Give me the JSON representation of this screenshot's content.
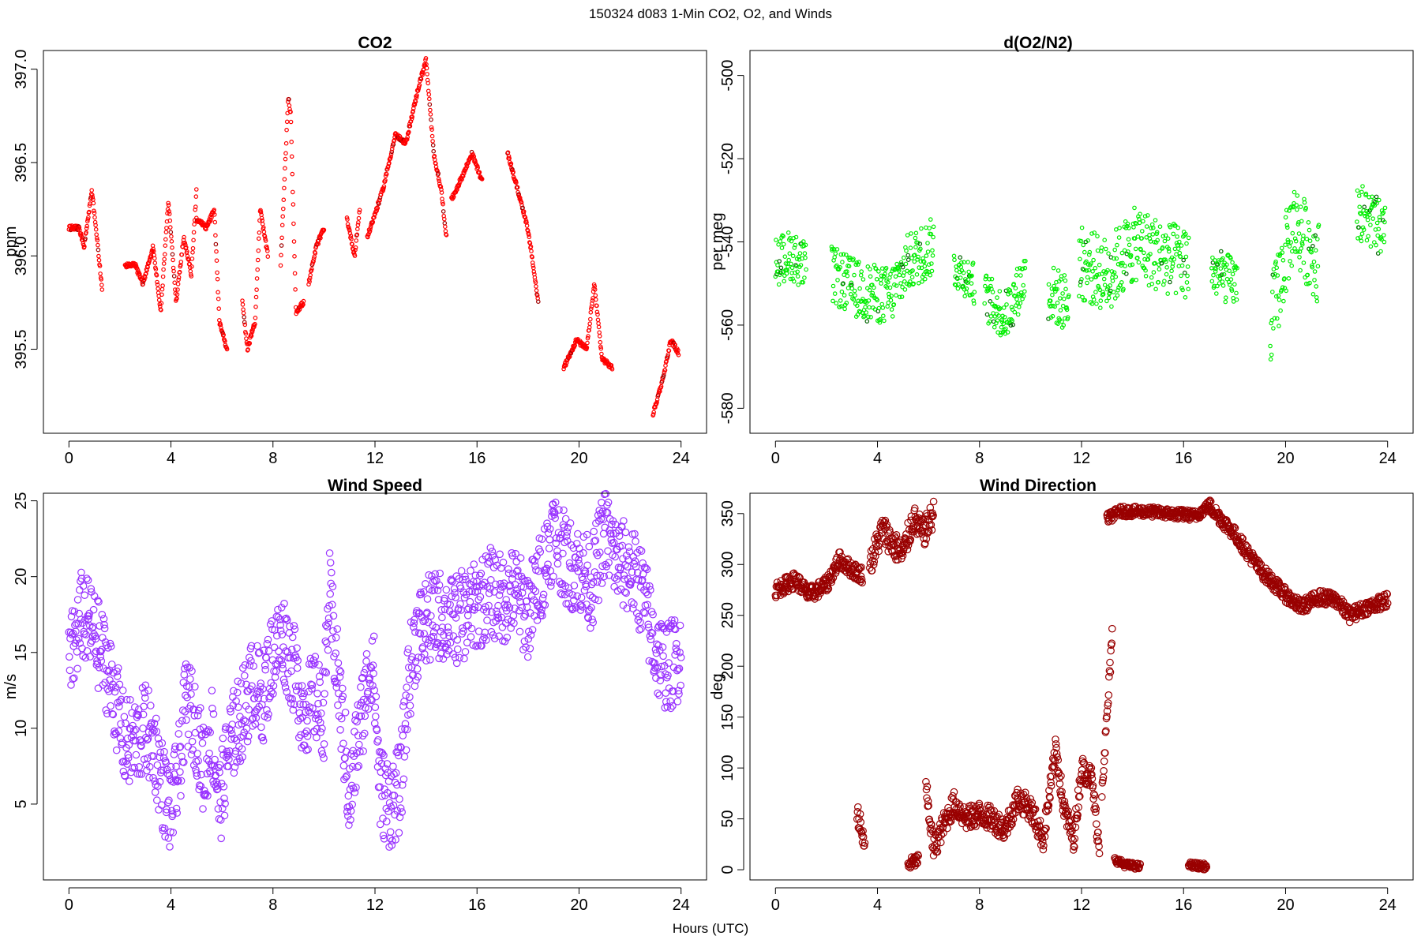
{
  "suptitle": "150324   d083   1-Min CO2, O2, and Winds",
  "xlabel": "Hours (UTC)",
  "chart_data": [
    {
      "id": "co2",
      "type": "scatter",
      "title": "CO2",
      "ylabel": "ppm",
      "color": "#ff0000",
      "dark_color": "#a00000",
      "xlim": [
        -1,
        25
      ],
      "ylim": [
        395.05,
        397.1
      ],
      "xticks": [
        0,
        4,
        8,
        12,
        16,
        20,
        24
      ],
      "yticks": [
        395.5,
        396.0,
        396.5,
        397.0
      ],
      "ytick_labels": [
        "395.5",
        "396.0",
        "396.5",
        "397.0"
      ],
      "segments": [
        {
          "x": [
            0.0,
            0.4,
            0.6,
            0.9,
            1.1,
            1.3
          ],
          "y": [
            396.15,
            396.15,
            396.05,
            396.35,
            396.1,
            395.82
          ]
        },
        {
          "x": [
            2.2,
            2.6,
            2.9,
            3.3,
            3.6,
            3.9,
            4.2,
            4.5,
            4.8,
            5.0
          ],
          "y": [
            395.95,
            395.95,
            395.85,
            396.05,
            395.7,
            396.3,
            395.75,
            396.1,
            395.9,
            396.35
          ]
        },
        {
          "x": [
            5.0,
            5.4,
            5.7,
            5.9,
            6.2
          ],
          "y": [
            396.2,
            396.15,
            396.25,
            395.65,
            395.5
          ]
        },
        {
          "x": [
            6.8,
            7.0,
            7.3,
            7.5,
            7.8
          ],
          "y": [
            395.75,
            395.5,
            395.65,
            396.25,
            396.0
          ]
        },
        {
          "x": [
            8.3,
            8.6,
            8.7,
            8.9,
            9.2
          ],
          "y": [
            395.95,
            396.85,
            396.75,
            395.7,
            395.75
          ]
        },
        {
          "x": [
            9.4,
            9.7,
            10.0
          ],
          "y": [
            395.85,
            396.05,
            396.15
          ]
        },
        {
          "x": [
            10.9,
            11.2,
            11.4
          ],
          "y": [
            396.2,
            396.0,
            396.25
          ]
        },
        {
          "x": [
            11.7,
            12.3,
            12.8,
            13.2,
            13.7,
            14.0,
            14.3,
            14.6,
            14.8
          ],
          "y": [
            396.1,
            396.35,
            396.65,
            396.6,
            396.9,
            397.05,
            396.55,
            396.35,
            396.1
          ]
        },
        {
          "x": [
            15.0,
            15.5,
            15.8,
            16.2
          ],
          "y": [
            396.3,
            396.45,
            396.55,
            396.4
          ]
        },
        {
          "x": [
            17.2,
            17.6,
            17.9,
            18.1,
            18.4
          ],
          "y": [
            396.55,
            396.35,
            396.2,
            396.05,
            395.75
          ]
        },
        {
          "x": [
            19.4,
            19.9,
            20.3,
            20.6,
            20.9,
            21.3
          ],
          "y": [
            395.4,
            395.55,
            395.5,
            395.85,
            395.45,
            395.4
          ]
        },
        {
          "x": [
            22.9,
            23.3,
            23.6,
            23.9
          ],
          "y": [
            395.15,
            395.35,
            395.55,
            395.48
          ]
        }
      ]
    },
    {
      "id": "o2",
      "type": "scatter",
      "title": "d(O2/N2)",
      "ylabel": "per meg",
      "color": "#00ee00",
      "dark_color": "#006400",
      "xlim": [
        -1,
        25
      ],
      "ylim": [
        -586,
        -494
      ],
      "xticks": [
        0,
        4,
        8,
        12,
        16,
        20,
        24
      ],
      "yticks": [
        -580,
        -560,
        -540,
        -520,
        -500
      ],
      "ytick_labels": [
        "-580",
        "-560",
        "-540",
        "-520",
        "-500"
      ],
      "segments": [
        {
          "x": [
            0.0,
            0.6,
            1.2
          ],
          "y": [
            -545,
            -543,
            -546
          ],
          "spread": 6
        },
        {
          "x": [
            2.2,
            3.4,
            4.5,
            5.2,
            6.2
          ],
          "y": [
            -548,
            -552,
            -553,
            -545,
            -541
          ],
          "spread": 7
        },
        {
          "x": [
            7.0,
            7.8
          ],
          "y": [
            -546,
            -550
          ],
          "spread": 5
        },
        {
          "x": [
            8.2,
            9.0,
            9.8
          ],
          "y": [
            -553,
            -558,
            -548
          ],
          "spread": 6
        },
        {
          "x": [
            10.7,
            11.5
          ],
          "y": [
            -552,
            -555
          ],
          "spread": 7
        },
        {
          "x": [
            11.9,
            13.0,
            14.2,
            15.2,
            16.2
          ],
          "y": [
            -545,
            -548,
            -540,
            -544,
            -545
          ],
          "spread": 9
        },
        {
          "x": [
            17.1,
            18.1
          ],
          "y": [
            -547,
            -550
          ],
          "spread": 6
        },
        {
          "x": [
            19.4,
            20.3,
            21.3
          ],
          "y": [
            -560,
            -535,
            -545
          ],
          "spread": 10
        },
        {
          "x": [
            22.8,
            23.9
          ],
          "y": [
            -532,
            -538
          ],
          "spread": 7
        }
      ]
    },
    {
      "id": "wspd",
      "type": "scatter",
      "title": "Wind Speed",
      "ylabel": "m/s",
      "color": "#9933ff",
      "xlim": [
        -1,
        25
      ],
      "ylim": [
        0,
        25.5
      ],
      "xticks": [
        0,
        4,
        8,
        12,
        16,
        20,
        24
      ],
      "yticks": [
        5,
        10,
        15,
        20,
        25
      ],
      "ytick_labels": [
        "5",
        "10",
        "15",
        "20",
        "25"
      ],
      "segments": [
        {
          "x": [
            0,
            0.5,
            0.9,
            1.4,
            1.8,
            2.2,
            2.6,
            3.0,
            3.4,
            3.7,
            4.0,
            4.3,
            4.6,
            5.0,
            5.3,
            5.6,
            5.9,
            6.3,
            6.8,
            7.2,
            7.6,
            8.0,
            8.4,
            8.8,
            9.2,
            9.6,
            10.0,
            10.2,
            10.5,
            10.8,
            11.0,
            11.3,
            11.6,
            11.9,
            12.2,
            12.6,
            13.0,
            13.3,
            13.6,
            14.0,
            14.5,
            15.0,
            15.5,
            16.0,
            16.5,
            17.0,
            17.5,
            18.0,
            18.5,
            19.0,
            19.5,
            20.0,
            20.5,
            21.0,
            21.5,
            22.0,
            22.5,
            23.0,
            23.5,
            24.0
          ],
          "y": [
            14,
            17.5,
            16.5,
            14.5,
            12,
            9,
            9,
            10,
            8.5,
            6,
            4.5,
            7,
            12,
            10,
            7,
            10,
            5,
            9,
            11,
            13,
            12,
            15,
            16,
            14,
            11,
            12,
            11,
            19,
            14,
            9,
            5,
            9,
            12,
            15,
            6,
            5,
            6,
            13,
            16,
            17,
            17.5,
            17,
            17.5,
            18,
            19,
            18.5,
            19,
            17.5,
            20,
            23,
            21,
            20.5,
            19.5,
            23,
            21,
            20.5,
            19,
            15,
            14,
            15
          ],
          "spread": 3
        }
      ]
    },
    {
      "id": "wdir",
      "type": "scatter",
      "title": "Wind Direction",
      "ylabel": "deg",
      "color": "#990000",
      "xlim": [
        -1,
        25
      ],
      "ylim": [
        -10,
        370
      ],
      "xticks": [
        0,
        4,
        8,
        12,
        16,
        20,
        24
      ],
      "yticks": [
        0,
        50,
        100,
        150,
        200,
        250,
        300,
        350
      ],
      "ytick_labels": [
        "0",
        "50",
        "100",
        "150",
        "200",
        "250",
        "300",
        "350"
      ],
      "segments": [
        {
          "x": [
            0,
            0.8,
            1.3,
            2.0,
            2.5,
            3.0,
            3.4
          ],
          "y": [
            275,
            285,
            270,
            280,
            305,
            295,
            290
          ],
          "spread": 8
        },
        {
          "x": [
            3.7,
            4.2,
            4.6,
            5.0,
            5.4,
            5.8,
            6.2
          ],
          "y": [
            300,
            335,
            320,
            310,
            345,
            330,
            350
          ],
          "spread": 14
        },
        {
          "x": [
            3.2,
            3.5
          ],
          "y": [
            60,
            20
          ],
          "spread": 12
        },
        {
          "x": [
            5.2,
            5.6
          ],
          "y": [
            5,
            10
          ],
          "spread": 6
        },
        {
          "x": [
            5.9,
            6.2,
            6.6,
            7.0,
            7.5,
            8.0,
            8.5,
            9.0,
            9.5,
            10.0,
            10.5,
            11.0,
            11.3,
            11.7,
            12.0,
            12.4,
            12.7
          ],
          "y": [
            80,
            20,
            45,
            65,
            50,
            55,
            50,
            40,
            70,
            60,
            30,
            120,
            60,
            30,
            100,
            90,
            20
          ],
          "spread": 12
        },
        {
          "x": [
            12.8,
            13.0,
            13.2
          ],
          "y": [
            80,
            150,
            230
          ],
          "spread": 10
        },
        {
          "x": [
            13.3,
            13.7,
            14.3
          ],
          "y": [
            10,
            5,
            3
          ],
          "spread": 3
        },
        {
          "x": [
            16.2,
            16.9
          ],
          "y": [
            5,
            3
          ],
          "spread": 3
        },
        {
          "x": [
            13.0,
            13.5,
            14.5,
            15.5,
            16.5,
            17.0
          ],
          "y": [
            345,
            352,
            352,
            350,
            348,
            358
          ],
          "spread": 5
        },
        {
          "x": [
            17.0,
            18.0,
            19.0,
            20.0,
            20.6,
            21.3,
            22.0,
            22.5,
            23.2,
            24.0
          ],
          "y": [
            358,
            330,
            295,
            270,
            258,
            268,
            265,
            250,
            258,
            265
          ],
          "spread": 7
        }
      ]
    }
  ]
}
